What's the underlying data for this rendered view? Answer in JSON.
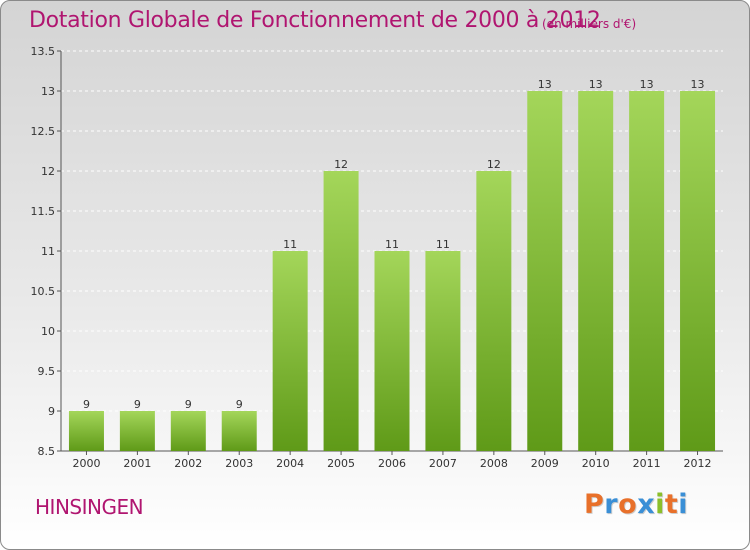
{
  "title": "Dotation Globale de Fonctionnement de 2000 à 2012",
  "unit_note": "(en milliers d'€)",
  "commune": "HINSINGEN",
  "logo": {
    "text": "Proxiti",
    "colors": [
      "#e8702a",
      "#3a8fd6",
      "#e8702a",
      "#3a8fd6",
      "#8bbf2a",
      "#e8702a",
      "#3a8fd6"
    ]
  },
  "colors": {
    "bar_top": "#a4d65a",
    "bar_bottom": "#5f9a18",
    "title": "#b01570"
  },
  "chart_data": {
    "type": "bar",
    "categories": [
      "2000",
      "2001",
      "2002",
      "2003",
      "2004",
      "2005",
      "2006",
      "2007",
      "2008",
      "2009",
      "2010",
      "2011",
      "2012"
    ],
    "values": [
      9,
      9,
      9,
      9,
      11,
      12,
      11,
      11,
      12,
      13,
      13,
      13,
      13
    ],
    "value_labels": [
      "9",
      "9",
      "9",
      "9",
      "11",
      "12",
      "11",
      "11",
      "12",
      "13",
      "13",
      "13",
      "13"
    ],
    "ylim": [
      8.5,
      13.5
    ],
    "yticks": [
      8.5,
      9,
      9.5,
      10,
      10.5,
      11,
      11.5,
      12,
      12.5,
      13,
      13.5
    ],
    "ytick_labels": [
      "8.5",
      "9",
      "9.5",
      "10",
      "10.5",
      "11",
      "11.5",
      "12",
      "12.5",
      "13",
      "13.5"
    ],
    "grid": true
  }
}
